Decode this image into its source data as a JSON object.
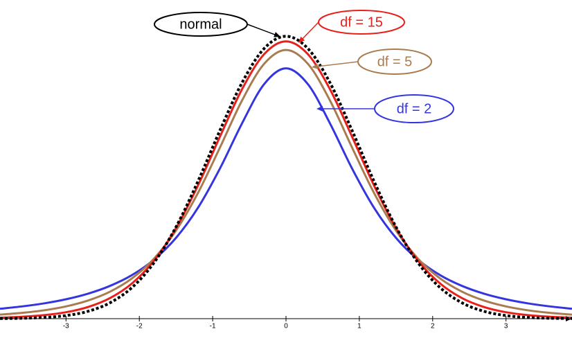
{
  "chart_data": {
    "type": "line",
    "x": [
      -3.9,
      -3.6,
      -3.3,
      -3.0,
      -2.7,
      -2.4,
      -2.1,
      -1.8,
      -1.5,
      -1.2,
      -0.9,
      -0.6,
      -0.3,
      0,
      0.3,
      0.6,
      0.9,
      1.2,
      1.5,
      1.8,
      2.1,
      2.4,
      2.7,
      3.0,
      3.3,
      3.6,
      3.9
    ],
    "series": [
      {
        "name": "df = 2",
        "color": "#3535e0",
        "style": "solid",
        "values": [
          0.014,
          0.0173,
          0.0216,
          0.0274,
          0.0353,
          0.0463,
          0.0616,
          0.0834,
          0.1141,
          0.1567,
          0.2123,
          0.2758,
          0.331,
          0.3536,
          0.331,
          0.2758,
          0.2123,
          0.1567,
          0.1141,
          0.0834,
          0.0616,
          0.0463,
          0.0353,
          0.0274,
          0.0216,
          0.0173,
          0.014
        ]
      },
      {
        "name": "df = 5",
        "color": "#a97c50",
        "style": "solid",
        "values": [
          0.0057,
          0.0082,
          0.0118,
          0.0173,
          0.0256,
          0.0381,
          0.0569,
          0.0848,
          0.1245,
          0.1777,
          0.2419,
          0.3081,
          0.3598,
          0.3796,
          0.3598,
          0.3081,
          0.2419,
          0.1777,
          0.1245,
          0.0848,
          0.0569,
          0.0381,
          0.0256,
          0.0173,
          0.0118,
          0.0082,
          0.0057
        ]
      },
      {
        "name": "df = 15",
        "color": "#e8201a",
        "style": "solid",
        "values": [
          0.0014,
          0.0027,
          0.005,
          0.0091,
          0.0165,
          0.0291,
          0.0498,
          0.0819,
          0.1281,
          0.1881,
          0.2572,
          0.324,
          0.3734,
          0.3917,
          0.3734,
          0.324,
          0.2572,
          0.1881,
          0.1281,
          0.0819,
          0.0498,
          0.0291,
          0.0165,
          0.0091,
          0.005,
          0.0027,
          0.0014
        ]
      },
      {
        "name": "normal",
        "color": "#000000",
        "style": "dotted",
        "values": [
          0.0002,
          0.0006,
          0.0017,
          0.0044,
          0.0104,
          0.0224,
          0.044,
          0.079,
          0.1295,
          0.1942,
          0.2661,
          0.3332,
          0.3814,
          0.3989,
          0.3814,
          0.3332,
          0.2661,
          0.1942,
          0.1295,
          0.079,
          0.044,
          0.0224,
          0.0104,
          0.0044,
          0.0017,
          0.0006,
          0.0002
        ]
      }
    ],
    "xlim": [
      -3.9,
      3.9
    ],
    "xticks": [
      -3,
      -2,
      -1,
      0,
      1,
      2,
      3
    ],
    "ylim": [
      0,
      0.41
    ]
  }
}
